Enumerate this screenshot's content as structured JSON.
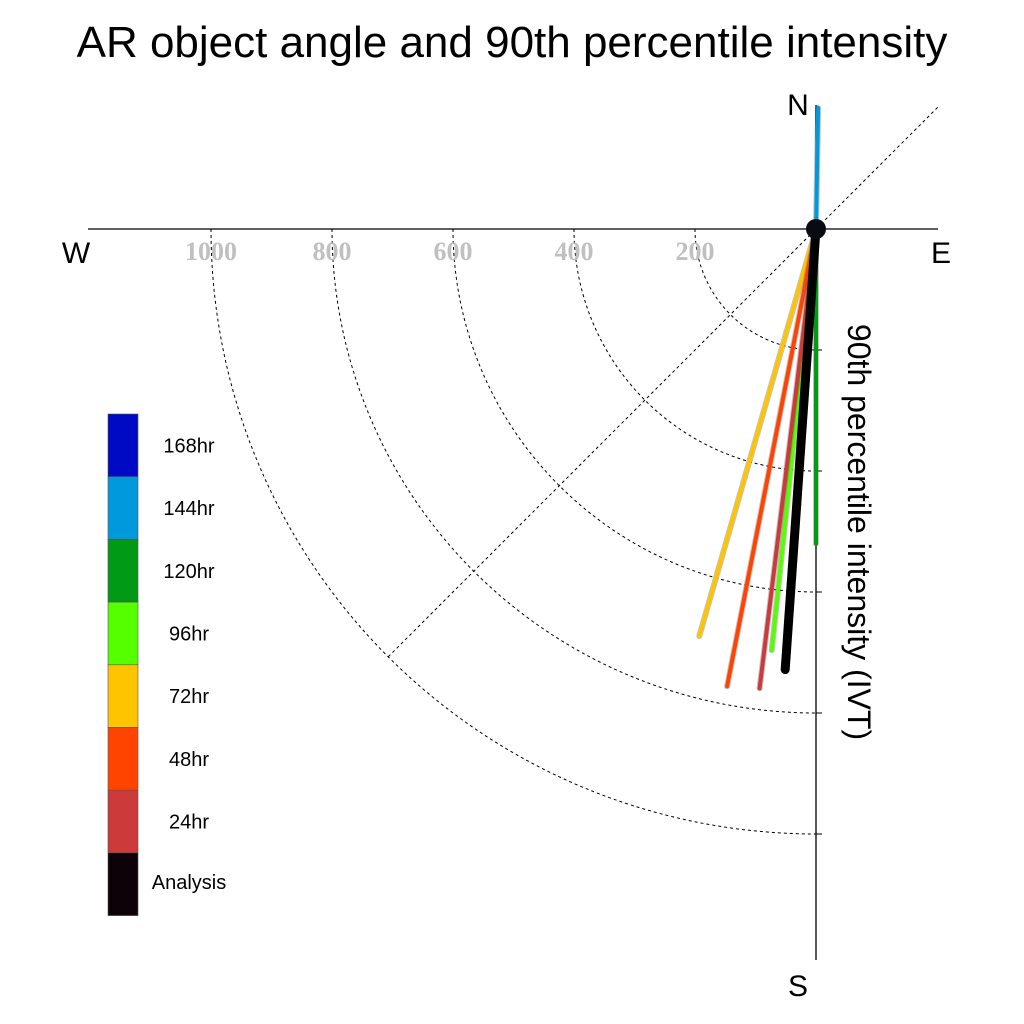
{
  "chart_data": {
    "type": "polar-vector",
    "title": "AR object angle and 90th percentile intensity",
    "ylabel": "90th percentile intensity (IVT)",
    "compass": {
      "north": "N",
      "south": "S",
      "east": "E",
      "west": "W"
    },
    "radial_ticks": [
      {
        "value": 200,
        "label": "200"
      },
      {
        "value": 400,
        "label": "400"
      },
      {
        "value": 600,
        "label": "600"
      },
      {
        "value": 800,
        "label": "800"
      },
      {
        "value": 1000,
        "label": "1000"
      }
    ],
    "legend": [
      {
        "label": "168hr",
        "color": "#0009C4"
      },
      {
        "label": "144hr",
        "color": "#0099DD"
      },
      {
        "label": "120hr",
        "color": "#009A14"
      },
      {
        "label": "96hr",
        "color": "#55FF00"
      },
      {
        "label": "72hr",
        "color": "#FFC400"
      },
      {
        "label": "48hr",
        "color": "#FF4400"
      },
      {
        "label": "24hr",
        "color": "#CC3A3A"
      },
      {
        "label": "Analysis",
        "color": "#0C0208"
      }
    ],
    "series": [
      {
        "name": "144hr",
        "color": "#0099DD",
        "angle_deg": 1,
        "intensity": 200
      },
      {
        "name": "120hr",
        "color": "#009A14",
        "angle_deg": 180,
        "intensity": 520
      },
      {
        "name": "72hr",
        "color": "#FFC400",
        "angle_deg": 196,
        "intensity": 700
      },
      {
        "name": "96hr",
        "color": "#55FF00",
        "angle_deg": 186,
        "intensity": 700
      },
      {
        "name": "48hr",
        "color": "#FF4400",
        "angle_deg": 191,
        "intensity": 770
      },
      {
        "name": "24hr",
        "color": "#CC3A3A",
        "angle_deg": 187,
        "intensity": 765
      },
      {
        "name": "Analysis",
        "color": "#000000",
        "angle_deg": 184,
        "intensity": 730
      }
    ]
  }
}
